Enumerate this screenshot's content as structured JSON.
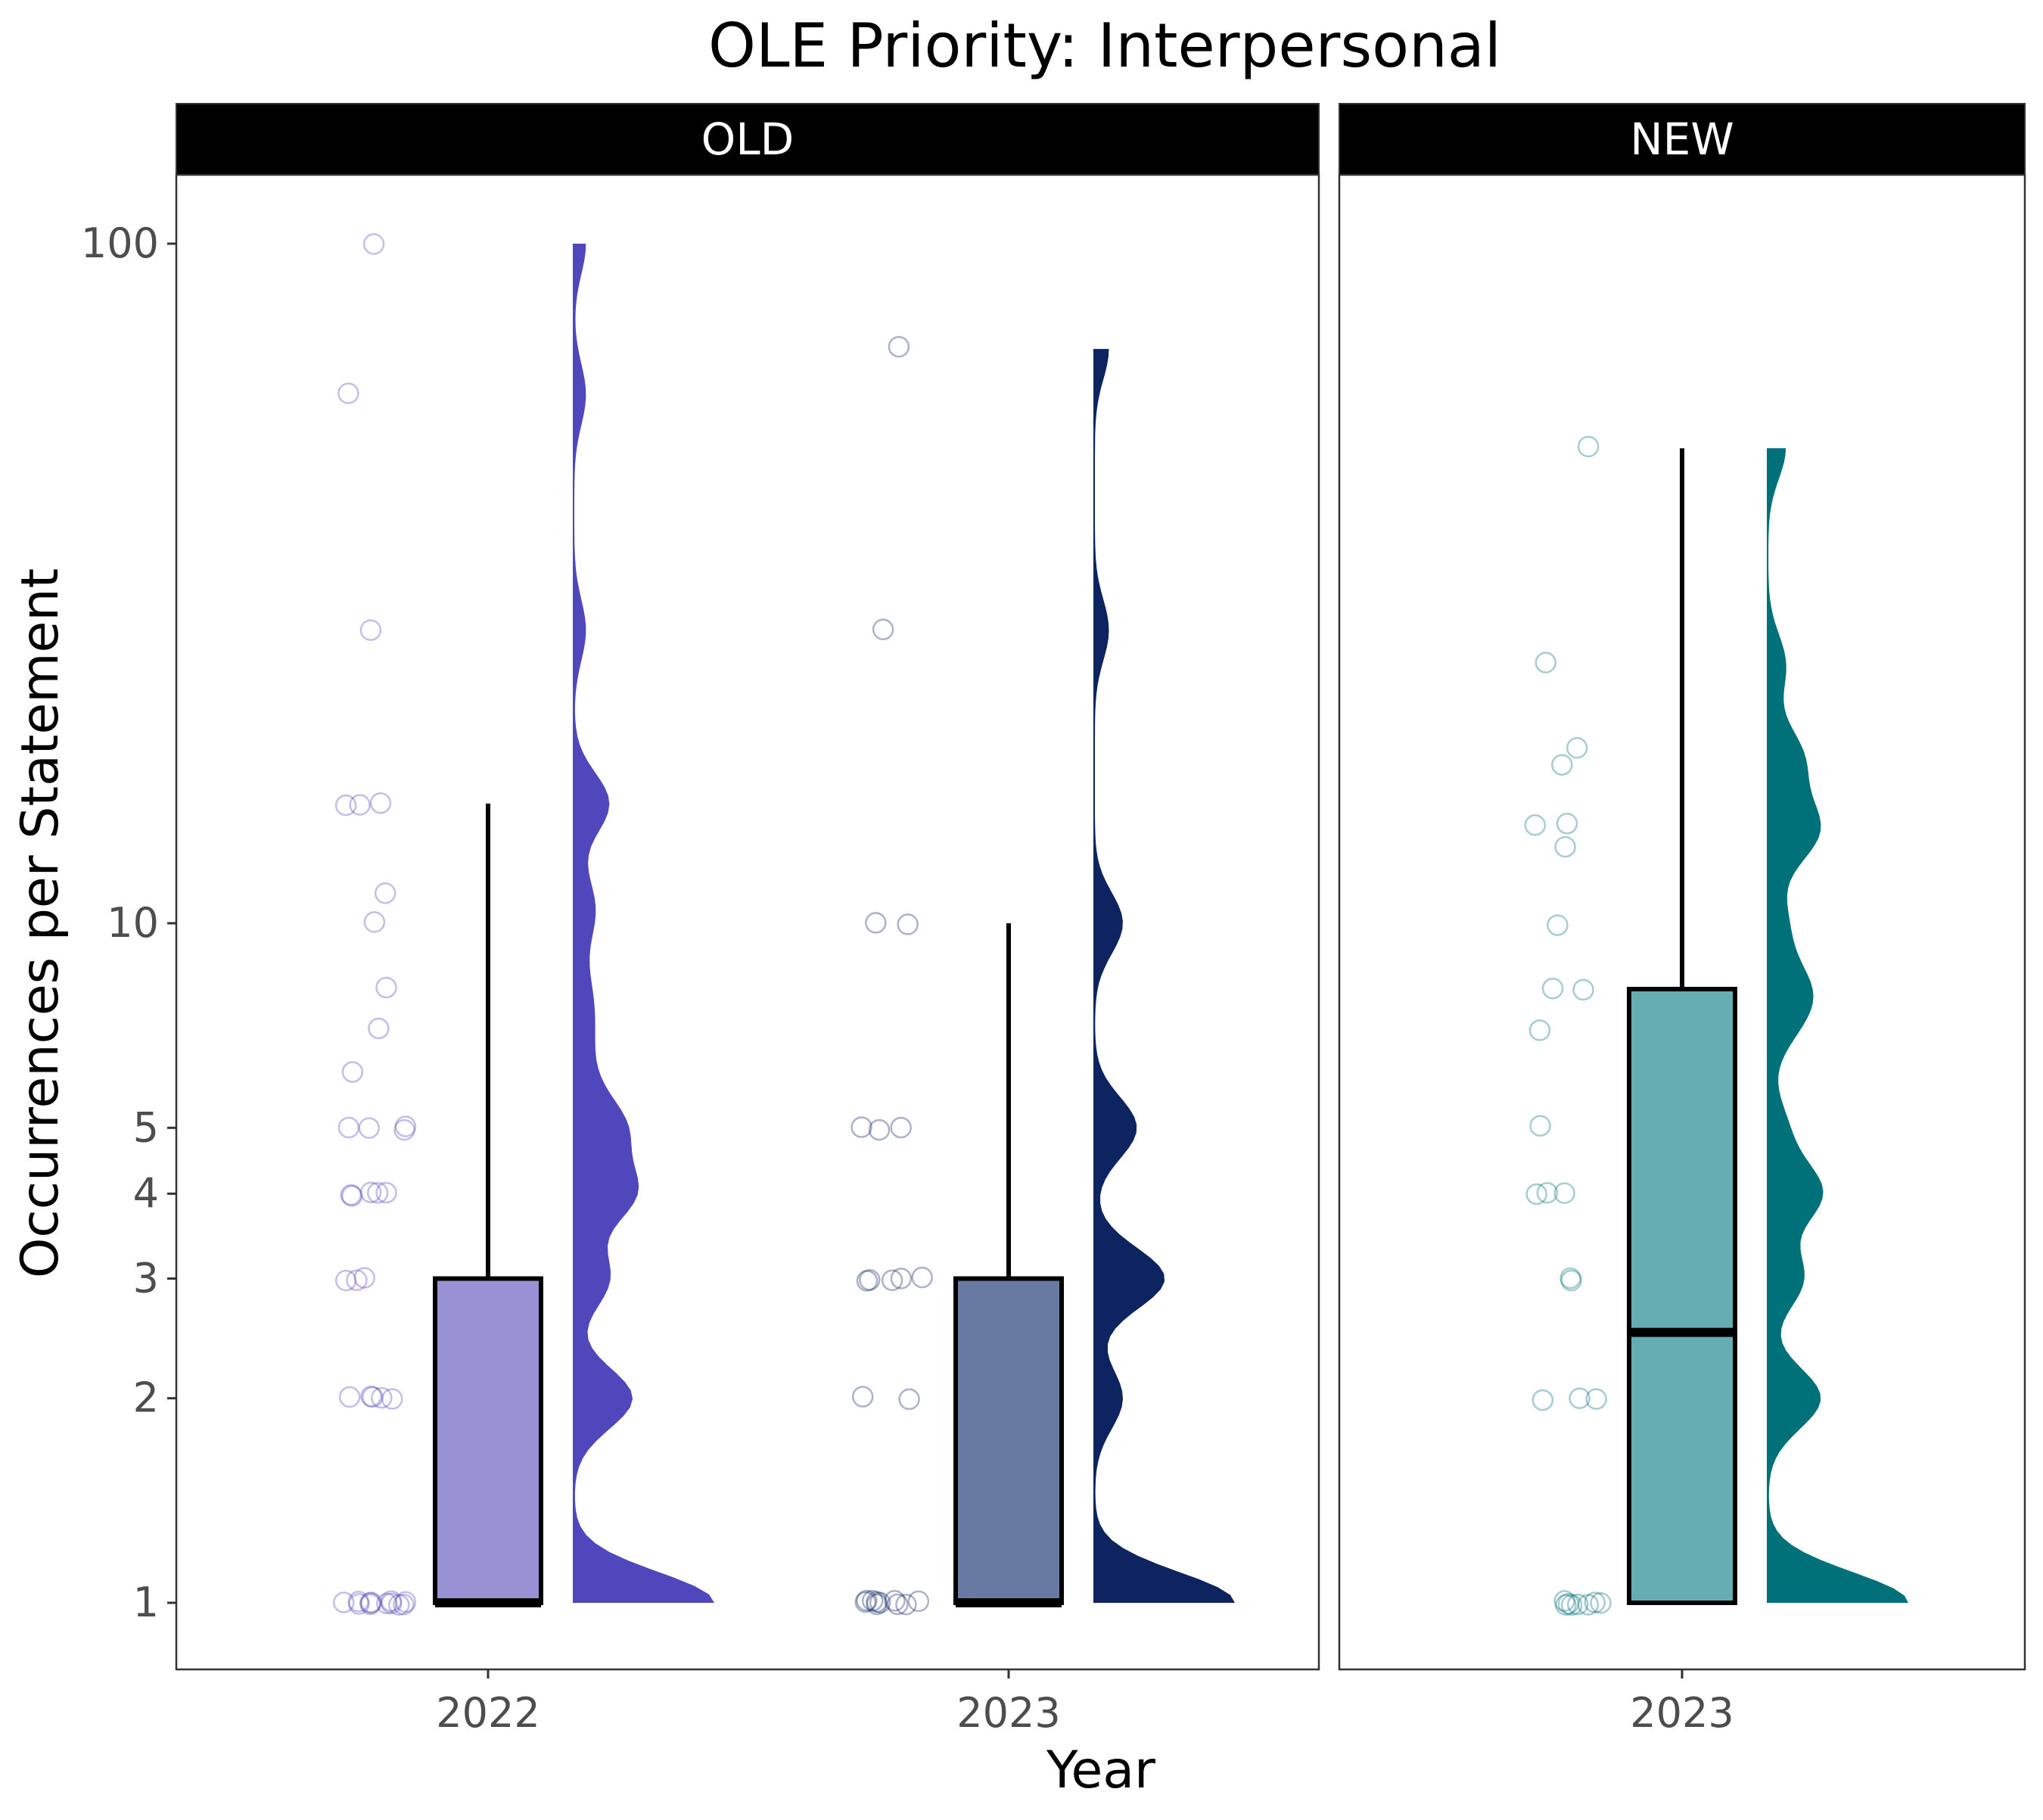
{
  "chart_data": {
    "type": "raincloud",
    "title": "OLE Priority: Interpersonal",
    "xlabel": "Year",
    "ylabel": "Occurrences per Statement",
    "y_scale": "log10",
    "y_ticks": [
      1,
      2,
      3,
      4,
      5,
      10,
      100
    ],
    "y_tick_labels": [
      "1",
      "2",
      "3",
      "4",
      "5",
      "10",
      "100"
    ],
    "ylim": [
      0.82,
      150
    ],
    "grid": false,
    "panels": [
      {
        "label": "OLD",
        "categories": [
          "2022",
          "2023"
        ],
        "groups": [
          {
            "category": "2022",
            "color": "#5147bd",
            "box_fill": "#9891d4",
            "box": {
              "q1": 1,
              "median": 1,
              "q3": 3,
              "whisker_low": 1,
              "whisker_high": 15
            },
            "points": [
              100,
              60,
              27,
              15,
              15,
              15,
              11,
              10,
              8,
              7,
              6,
              5,
              5,
              5,
              5,
              4,
              4,
              4,
              4,
              4,
              3,
              3,
              3,
              2,
              2,
              2,
              2,
              2,
              1,
              1,
              1,
              1,
              1,
              1,
              1,
              1,
              1,
              1,
              1,
              1
            ]
          },
          {
            "category": "2023",
            "color": "#0e2460",
            "box_fill": "#687aa1",
            "box": {
              "q1": 1,
              "median": 1,
              "q3": 3,
              "whisker_low": 1,
              "whisker_high": 10
            },
            "points": [
              70,
              27,
              10,
              10,
              5,
              5,
              5,
              3,
              3,
              3,
              3,
              3,
              2,
              2,
              1,
              1,
              1,
              1,
              1,
              1,
              1,
              1,
              1,
              1
            ]
          }
        ]
      },
      {
        "label": "NEW",
        "categories": [
          "2023"
        ],
        "groups": [
          {
            "category": "2023",
            "color": "#007178",
            "box_fill": "#66adb3",
            "box": {
              "q1": 1,
              "median": 2.5,
              "q3": 8,
              "whisker_low": 1,
              "whisker_high": 50
            },
            "points": [
              50,
              24,
              18,
              17,
              14,
              14,
              13,
              10,
              8,
              8,
              7,
              5,
              4,
              4,
              4,
              3,
              3,
              2,
              2,
              2,
              1,
              1,
              1,
              1,
              1,
              1,
              1,
              1
            ]
          }
        ]
      }
    ]
  }
}
